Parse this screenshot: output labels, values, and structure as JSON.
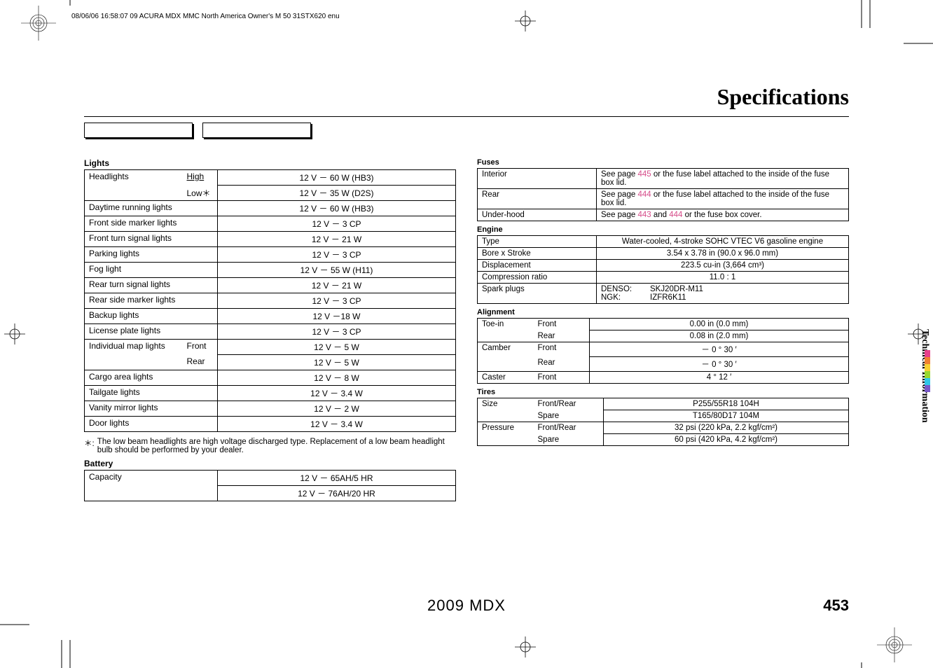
{
  "header": {
    "imprint": "08/06/06 16:58:07   09 ACURA MDX MMC North America Owner's M 50 31STX620 enu"
  },
  "page": {
    "title": "Specifications",
    "number": "453",
    "model": "2009  MDX",
    "side_tab": "Technical Information"
  },
  "lights": {
    "heading": "Lights",
    "rows": [
      {
        "a": "Headlights",
        "b": "High",
        "bclass": "underline",
        "c": "12 V － 60 W (HB3)",
        "nb": "b"
      },
      {
        "a": "",
        "b": "Low＊",
        "c": "12 V － 35 W (D2S)",
        "nt": "t"
      },
      {
        "a": "Daytime running lights",
        "span": true,
        "c": "12 V － 60 W (HB3)"
      },
      {
        "a": "Front side marker lights",
        "span": true,
        "c": "12 V － 3 CP"
      },
      {
        "a": "Front turn signal lights",
        "span": true,
        "c": "12 V － 21 W"
      },
      {
        "a": "Parking lights",
        "span": true,
        "c": "12 V － 3 CP"
      },
      {
        "a": "Fog light",
        "span": true,
        "c": "12 V － 55 W (H11)"
      },
      {
        "a": "Rear turn signal lights",
        "span": true,
        "c": "12 V － 21 W"
      },
      {
        "a": "Rear side marker lights",
        "span": true,
        "c": "12 V － 3 CP"
      },
      {
        "a": "Backup lights",
        "span": true,
        "c": "12 V －18 W"
      },
      {
        "a": "License plate lights",
        "span": true,
        "c": "12 V － 3 CP"
      },
      {
        "a": "Individual map lights",
        "b": "Front",
        "c": "12 V － 5 W",
        "nb": "b"
      },
      {
        "a": "",
        "b": "Rear",
        "c": "12 V － 5 W",
        "nt": "t"
      },
      {
        "a": "Cargo area lights",
        "span": true,
        "c": "12 V － 8 W"
      },
      {
        "a": "Tailgate lights",
        "span": true,
        "c": "12 V － 3.4 W"
      },
      {
        "a": "Vanity mirror lights",
        "span": true,
        "c": "12 V － 2 W"
      },
      {
        "a": "Door lights",
        "span": true,
        "c": "12 V － 3.4 W"
      }
    ],
    "footnote_sym": "＊:",
    "footnote_text": "The low beam headlights are high voltage discharged type. Replacement of a low beam headlight bulb should be performed by your dealer."
  },
  "battery": {
    "heading": "Battery",
    "rows": [
      {
        "a": "Capacity",
        "c": "12 V － 65AH/5 HR",
        "nb": "b"
      },
      {
        "a": "",
        "c": "12 V － 76AH/20 HR",
        "nt": "t"
      }
    ]
  },
  "fuses": {
    "heading": "Fuses",
    "rows": [
      {
        "a": "Interior",
        "c_pre": "See page ",
        "link1": "445",
        "c_post": " or the fuse label attached to the inside of the fuse box lid."
      },
      {
        "a": "Rear",
        "c_pre": "See page ",
        "link1": "444",
        "c_post": " or the fuse label attached to the inside of the fuse box lid."
      },
      {
        "a": "Under-hood",
        "c_pre": "See page ",
        "link1": "443",
        "c_mid": " and ",
        "link2": "444",
        "c_post": " or the fuse box cover."
      }
    ]
  },
  "engine": {
    "heading": "Engine",
    "rows": [
      {
        "a": "Type",
        "c": "Water-cooled, 4-stroke SOHC VTEC V6 gasoline engine",
        "center": true
      },
      {
        "a": "Bore x Stroke",
        "c": "3.54 x 3.78 in (90.0 x 96.0 mm)",
        "center": true
      },
      {
        "a": "Displacement",
        "c": "223.5 cu-in (3,664 cm³)",
        "center": true
      },
      {
        "a": "Compression ratio",
        "c": "11.0 : 1",
        "center": true
      }
    ],
    "plug_label": "Spark plugs",
    "plug_a1": "DENSO:",
    "plug_b1": "SKJ20DR-M11",
    "plug_a2": "NGK:",
    "plug_b2": "IZFR6K11"
  },
  "alignment": {
    "heading": "Alignment",
    "rows": [
      {
        "a": "Toe-in",
        "b": "Front",
        "c": "0.00 in (0.0 mm)",
        "nb": "b"
      },
      {
        "a": "",
        "b": "Rear",
        "c": "0.08 in (2.0 mm)",
        "nt": "t"
      },
      {
        "a": "Camber",
        "b": "Front",
        "c": "－ 0 ° 30 ′",
        "nb": "b"
      },
      {
        "a": "",
        "b": "Rear",
        "c": "－ 0 ° 30 ′",
        "nt": "t"
      },
      {
        "a": "Caster",
        "b": "Front",
        "c": "4 ° 12 ′"
      }
    ]
  },
  "tires": {
    "heading": "Tires",
    "rows": [
      {
        "a": "Size",
        "b": "Front/Rear",
        "c": "P255/55R18 104H",
        "nb": "b"
      },
      {
        "a": "",
        "b": "Spare",
        "c": "T165/80D17 104M",
        "nt": "t"
      },
      {
        "a": "Pressure",
        "b": "Front/Rear",
        "c": "32 psi (220 kPa, 2.2 kgf/cm²)",
        "nb": "b"
      },
      {
        "a": "",
        "b": "Spare",
        "c": "60 psi (420 kPa, 4.2 kgf/cm²)",
        "nt": "t"
      }
    ]
  },
  "colors": {
    "link": "#d64d8a",
    "cbar": [
      "#e83f8c",
      "#f08030",
      "#f8d030",
      "#98d830",
      "#30c8e8",
      "#7858c8"
    ]
  }
}
